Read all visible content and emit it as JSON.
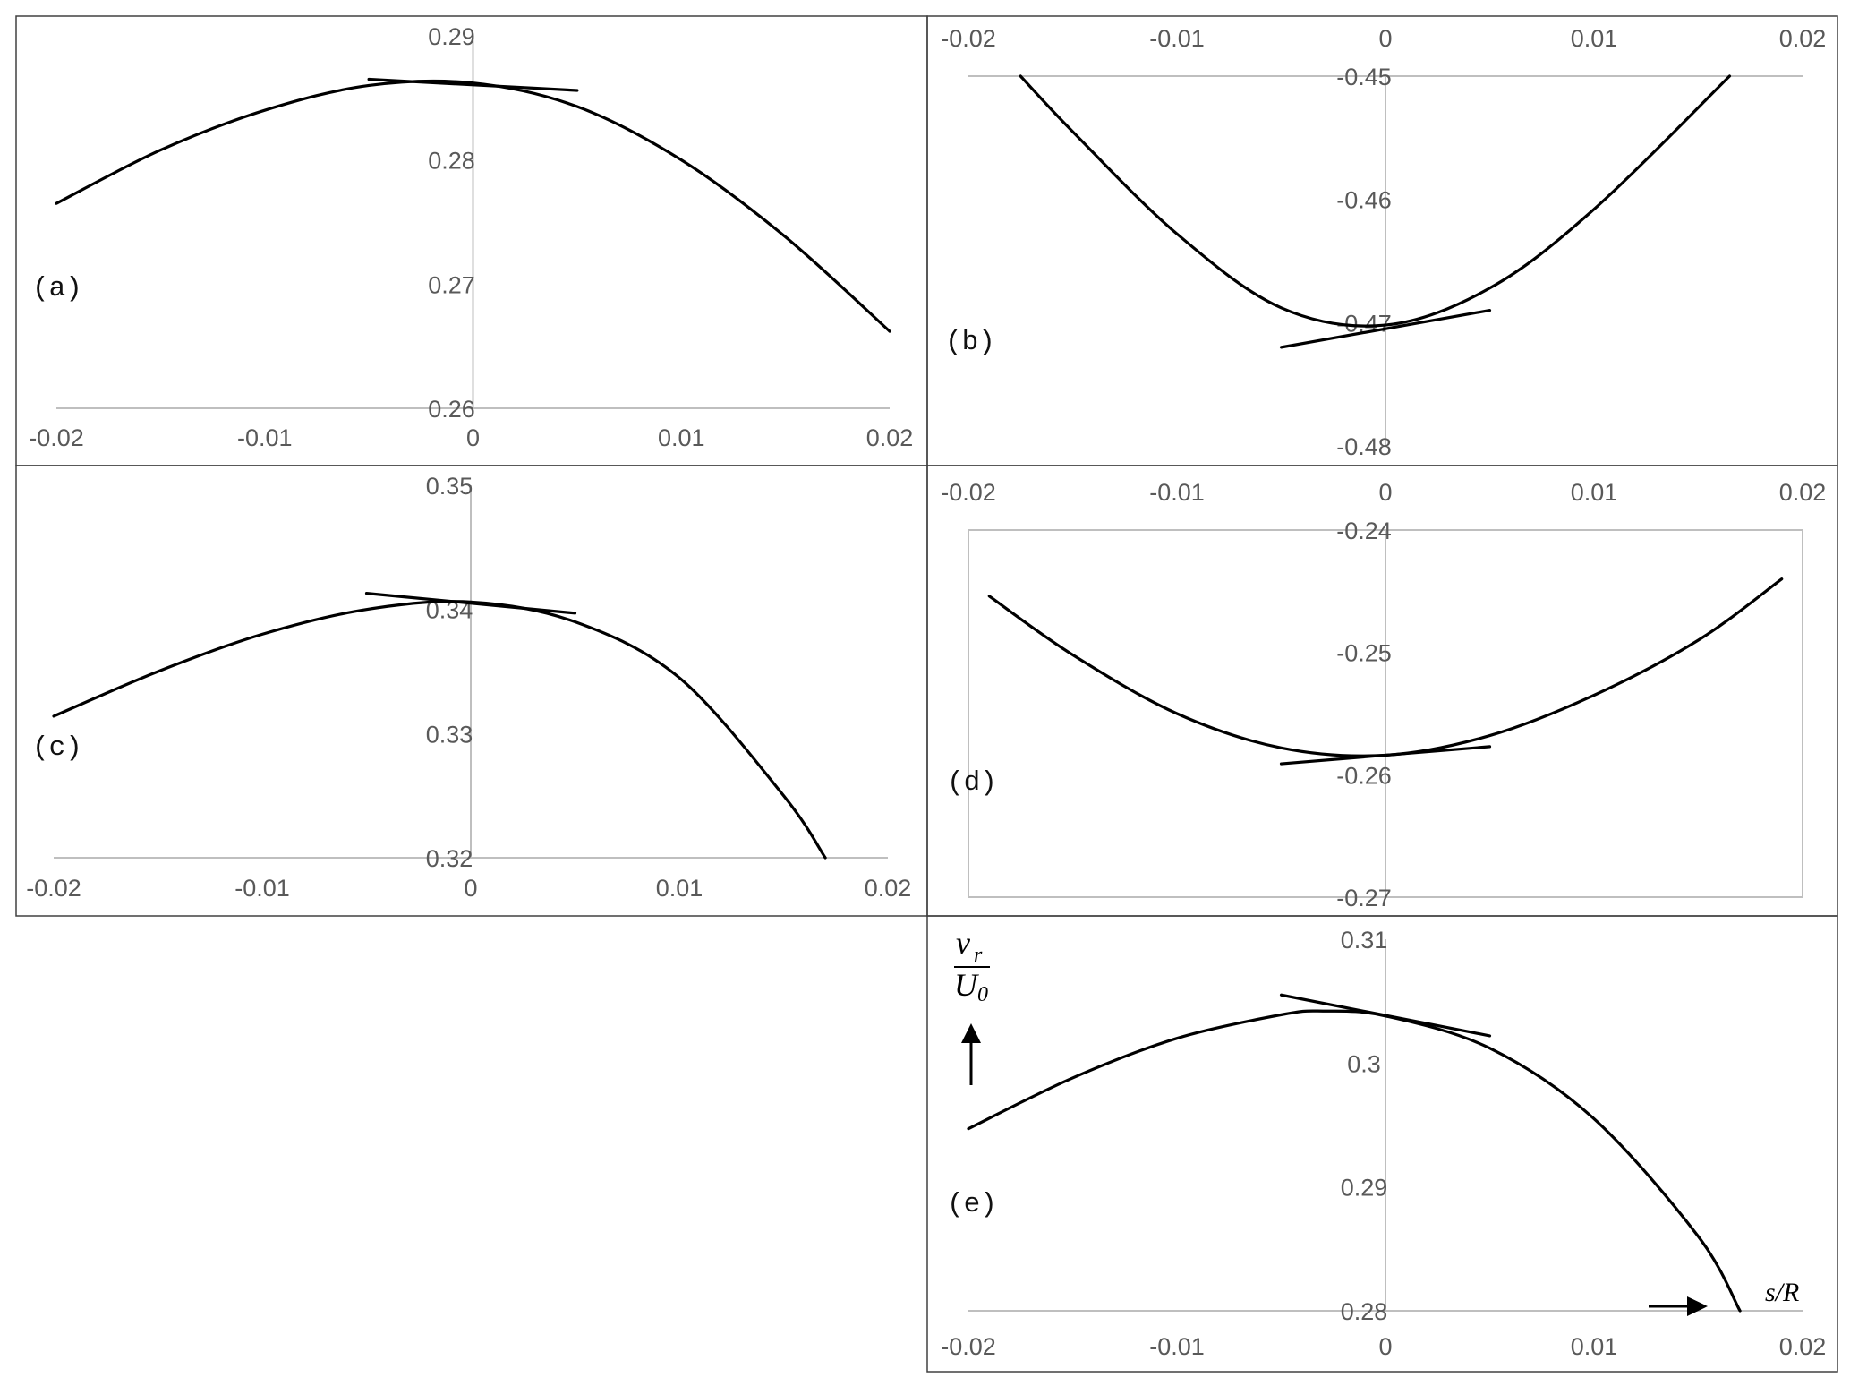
{
  "colors": {
    "axis": "#bfbfbf",
    "curve": "#000000",
    "frame": "#404040",
    "tick_text": "#595959"
  },
  "chart_data": [
    {
      "panel": "a",
      "label": "(a)",
      "type": "line",
      "xlim": [
        -0.02,
        0.02
      ],
      "ylim": [
        0.26,
        0.29
      ],
      "x_ticks": [
        -0.02,
        -0.01,
        0,
        0.01,
        0.02
      ],
      "x_tick_labels": [
        "-0.02",
        "-0.01",
        "0",
        "0.01",
        "0.02"
      ],
      "y_ticks": [
        0.26,
        0.27,
        0.28,
        0.29
      ],
      "y_tick_labels": [
        "0.26",
        "0.27",
        "0.28",
        "0.29"
      ],
      "series": [
        {
          "x": [
            -0.02,
            -0.015,
            -0.01,
            -0.005,
            0,
            0.005,
            0.01,
            0.015,
            0.02
          ],
          "y": [
            0.2765,
            0.2808,
            0.284,
            0.286,
            0.2862,
            0.2843,
            0.28,
            0.2738,
            0.2662
          ]
        },
        {
          "x": [
            -0.005,
            0.005
          ],
          "y": [
            0.2865,
            0.2856
          ]
        }
      ]
    },
    {
      "panel": "b",
      "label": "(b)",
      "type": "line",
      "xlim": [
        -0.02,
        0.02
      ],
      "ylim": [
        -0.48,
        -0.45
      ],
      "x_ticks": [
        -0.02,
        -0.01,
        0,
        0.01,
        0.02
      ],
      "x_tick_labels": [
        "-0.02",
        "-0.01",
        "0",
        "0.01",
        "0.02"
      ],
      "y_ticks": [
        -0.45,
        -0.46,
        -0.47,
        -0.48
      ],
      "y_tick_labels": [
        "-0.45",
        "-0.46",
        "-0.47",
        "-0.48"
      ],
      "series": [
        {
          "x": [
            -0.0175,
            -0.015,
            -0.01,
            -0.005,
            0,
            0.005,
            0.01,
            0.0165
          ],
          "y": [
            -0.45,
            -0.4545,
            -0.4628,
            -0.4688,
            -0.4702,
            -0.4672,
            -0.4608,
            -0.45
          ]
        },
        {
          "x": [
            -0.005,
            0.005
          ],
          "y": [
            -0.472,
            -0.469
          ]
        }
      ]
    },
    {
      "panel": "c",
      "label": "(c)",
      "type": "line",
      "xlim": [
        -0.02,
        0.02
      ],
      "ylim": [
        0.32,
        0.35
      ],
      "x_ticks": [
        -0.02,
        -0.01,
        0,
        0.01,
        0.02
      ],
      "x_tick_labels": [
        "-0.02",
        "-0.01",
        "0",
        "0.01",
        "0.02"
      ],
      "y_ticks": [
        0.32,
        0.33,
        0.34,
        0.35
      ],
      "y_tick_labels": [
        "0.32",
        "0.33",
        "0.34",
        "0.35"
      ],
      "series": [
        {
          "x": [
            -0.02,
            -0.015,
            -0.01,
            -0.005,
            0,
            0.005,
            0.01,
            0.015,
            0.017
          ],
          "y": [
            0.3314,
            0.335,
            0.338,
            0.34,
            0.3406,
            0.339,
            0.3345,
            0.325,
            0.32
          ]
        },
        {
          "x": [
            -0.005,
            0.005
          ],
          "y": [
            0.3413,
            0.3397
          ]
        }
      ]
    },
    {
      "panel": "d",
      "label": "(d)",
      "type": "line",
      "xlim": [
        -0.02,
        0.02
      ],
      "ylim": [
        -0.27,
        -0.24
      ],
      "x_ticks": [
        -0.02,
        -0.01,
        0,
        0.01,
        0.02
      ],
      "x_tick_labels": [
        "-0.02",
        "-0.01",
        "0",
        "0.01",
        "0.02"
      ],
      "y_ticks": [
        -0.24,
        -0.25,
        -0.26,
        -0.27
      ],
      "y_tick_labels": [
        "-0.24",
        "-0.25",
        "-0.26",
        "-0.27"
      ],
      "series": [
        {
          "x": [
            -0.019,
            -0.015,
            -0.01,
            -0.005,
            0,
            0.005,
            0.01,
            0.015,
            0.019
          ],
          "y": [
            -0.2454,
            -0.2502,
            -0.255,
            -0.2578,
            -0.2584,
            -0.2568,
            -0.2535,
            -0.249,
            -0.244
          ]
        },
        {
          "x": [
            -0.005,
            0.005
          ],
          "y": [
            -0.2591,
            -0.2577
          ]
        }
      ]
    },
    {
      "panel": "e",
      "label": "(e)",
      "type": "line",
      "xlim": [
        -0.02,
        0.02
      ],
      "ylim": [
        0.28,
        0.31
      ],
      "x_ticks": [
        -0.02,
        -0.01,
        0,
        0.01,
        0.02
      ],
      "x_tick_labels": [
        "-0.02",
        "-0.01",
        "0",
        "0.01",
        "0.02"
      ],
      "y_ticks": [
        0.28,
        0.29,
        0.3,
        0.31
      ],
      "y_tick_labels": [
        "0.28",
        "0.29",
        "0.3",
        "0.31"
      ],
      "ylabel": {
        "num": "v",
        "num_sub": "r",
        "den": "U",
        "den_sub": "0"
      },
      "xlabel": "s/R",
      "series": [
        {
          "x": [
            -0.02,
            -0.015,
            -0.01,
            -0.005,
            -0.003,
            0,
            0.005,
            0.01,
            0.015,
            0.017
          ],
          "y": [
            0.2947,
            0.2988,
            0.302,
            0.3039,
            0.3042,
            0.3038,
            0.3012,
            0.2955,
            0.286,
            0.28
          ]
        },
        {
          "x": [
            -0.005,
            0.005
          ],
          "y": [
            0.3055,
            0.3022
          ]
        }
      ]
    }
  ]
}
